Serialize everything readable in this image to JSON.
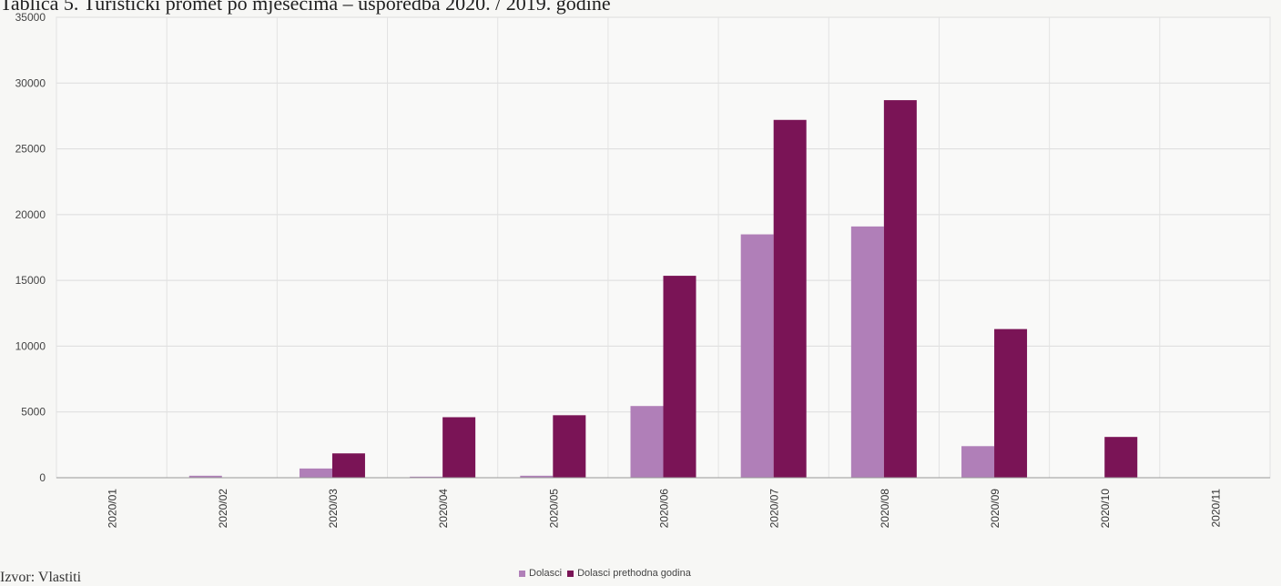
{
  "page": {
    "title": "Tablica 5. Turistički promet po mjesecima – usporedba 2020. / 2019. godine",
    "source": "Izvor: Vlastiti"
  },
  "chart_data": {
    "type": "bar",
    "categories": [
      "2020/01",
      "2020/02",
      "2020/03",
      "2020/04",
      "2020/05",
      "2020/06",
      "2020/07",
      "2020/08",
      "2020/09",
      "2020/10",
      "2020/11"
    ],
    "series": [
      {
        "name": "Dolasci",
        "color": "#b07fb8",
        "values": [
          0,
          150,
          700,
          80,
          150,
          5450,
          18500,
          19100,
          2400,
          0,
          0
        ]
      },
      {
        "name": "Dolasci prethodna godina",
        "color": "#7a1456",
        "values": [
          0,
          0,
          1850,
          4600,
          4750,
          15350,
          27200,
          28700,
          11300,
          3100,
          0
        ]
      }
    ],
    "ylim": [
      0,
      35000
    ],
    "yticks": [
      0,
      5000,
      10000,
      15000,
      20000,
      25000,
      30000,
      35000
    ],
    "grid": true,
    "legend": "bottom"
  }
}
